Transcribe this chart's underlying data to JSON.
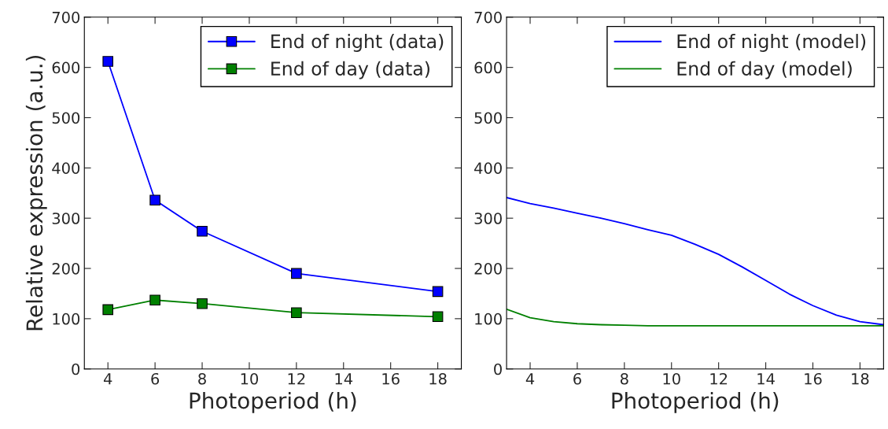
{
  "chart_data": [
    {
      "type": "line",
      "xlabel": "Photoperiod (h)",
      "ylabel": "Relative expression (a.u.)",
      "x": [
        4,
        6,
        8,
        12,
        18
      ],
      "xlim": [
        3,
        19
      ],
      "xticks": [
        4,
        6,
        8,
        10,
        12,
        14,
        16,
        18
      ],
      "ylim": [
        0,
        700
      ],
      "yticks": [
        0,
        100,
        200,
        300,
        400,
        500,
        600,
        700
      ],
      "marker": "square",
      "legend": "top right",
      "grid": false,
      "series": [
        {
          "name": "End of night (data)",
          "color": "#0000ff",
          "values": [
            612,
            336,
            274,
            190,
            154
          ]
        },
        {
          "name": "End of day (data)",
          "color": "#008000",
          "values": [
            118,
            137,
            130,
            112,
            104
          ]
        }
      ]
    },
    {
      "type": "line",
      "xlabel": "Photoperiod (h)",
      "x": [
        3,
        4,
        5,
        6,
        7,
        8,
        9,
        10,
        11,
        12,
        13,
        14,
        15,
        16,
        17,
        18,
        19
      ],
      "xlim": [
        3,
        19
      ],
      "xticks": [
        4,
        6,
        8,
        10,
        12,
        14,
        16,
        18
      ],
      "ylim": [
        0,
        700
      ],
      "yticks": [
        0,
        100,
        200,
        300,
        400,
        500,
        600,
        700
      ],
      "legend": "top right",
      "grid": false,
      "series": [
        {
          "name": "End of night (model)",
          "color": "#0000ff",
          "values": [
            341,
            329,
            320,
            310,
            300,
            289,
            277,
            266,
            248,
            228,
            203,
            176,
            149,
            126,
            107,
            94,
            88
          ]
        },
        {
          "name": "End of day (model)",
          "color": "#008000",
          "values": [
            119,
            102,
            94,
            90,
            88,
            87,
            86,
            86,
            86,
            86,
            86,
            86,
            86,
            86,
            86,
            86,
            86
          ]
        }
      ]
    }
  ]
}
